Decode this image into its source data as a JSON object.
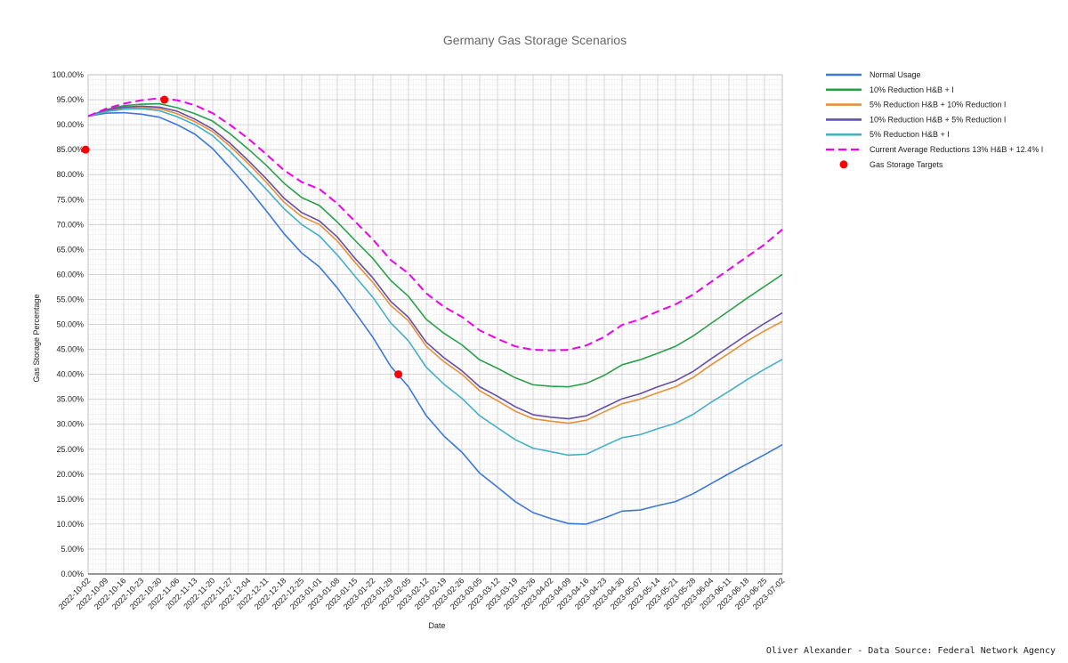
{
  "chart_data": {
    "type": "line",
    "title": "Germany Gas Storage Scenarios",
    "xlabel": "Date",
    "ylabel": "Gas Storage Percentage",
    "ylim": [
      0,
      100
    ],
    "ytick_step": 5,
    "ytick_suffix": "%",
    "grid": true,
    "legend_position": "top-right",
    "source": "Oliver Alexander - Data Source: Federal Network Agency",
    "x": [
      "2022-10-02",
      "2022-10-09",
      "2022-10-16",
      "2022-10-23",
      "2022-10-30",
      "2022-11-06",
      "2022-11-13",
      "2022-11-20",
      "2022-11-27",
      "2022-12-04",
      "2022-12-11",
      "2022-12-18",
      "2022-12-25",
      "2023-01-01",
      "2023-01-08",
      "2023-01-15",
      "2023-01-22",
      "2023-01-29",
      "2023-02-05",
      "2023-02-12",
      "2023-02-19",
      "2023-02-26",
      "2023-03-05",
      "2023-03-12",
      "2023-03-19",
      "2023-03-26",
      "2023-04-02",
      "2023-04-09",
      "2023-04-16",
      "2023-04-23",
      "2023-04-30",
      "2023-05-07",
      "2023-05-14",
      "2023-05-21",
      "2023-05-28",
      "2023-06-04",
      "2023-06-11",
      "2023-06-18",
      "2023-06-25",
      "2023-07-02"
    ],
    "series": [
      {
        "name": "Normal Usage",
        "color": "#3c78d8",
        "dash": false,
        "values": [
          91.7,
          92.3,
          92.4,
          92.1,
          91.5,
          90.0,
          88.1,
          85.2,
          81.3,
          77.2,
          72.8,
          68.2,
          64.3,
          61.5,
          57.3,
          52.4,
          47.4,
          41.6,
          37.5,
          31.7,
          27.6,
          24.4,
          20.2,
          17.4,
          14.5,
          12.3,
          11.1,
          10.1,
          10.0,
          11.2,
          12.6,
          12.8,
          13.7,
          14.5,
          16.1,
          18.1,
          20.1,
          22.0,
          23.9,
          25.9
        ]
      },
      {
        "name": "10% Reduction H&B + I",
        "color": "#2ba04a",
        "dash": false,
        "values": [
          91.7,
          93.0,
          93.8,
          94.1,
          94.2,
          93.4,
          92.2,
          90.7,
          88.1,
          85.1,
          81.9,
          78.3,
          75.4,
          73.8,
          70.5,
          66.8,
          63.2,
          58.8,
          55.6,
          51.0,
          48.2,
          45.9,
          42.9,
          41.2,
          39.3,
          37.9,
          37.6,
          37.5,
          38.2,
          39.8,
          41.9,
          42.9,
          44.2,
          45.6,
          47.7,
          50.2,
          52.7,
          55.2,
          57.6,
          60.0
        ]
      },
      {
        "name": "5% Reduction H&B + 10% Reduction I",
        "color": "#e69138",
        "dash": false,
        "values": [
          91.7,
          92.8,
          93.3,
          93.4,
          93.2,
          92.2,
          90.6,
          88.6,
          85.6,
          82.2,
          78.5,
          74.5,
          71.6,
          70.0,
          66.7,
          62.4,
          58.4,
          53.8,
          50.7,
          45.6,
          42.5,
          40.0,
          36.7,
          34.7,
          32.6,
          31.1,
          30.6,
          30.2,
          30.8,
          32.5,
          34.1,
          35.0,
          36.3,
          37.5,
          39.4,
          41.9,
          44.2,
          46.6,
          48.7,
          50.6
        ]
      },
      {
        "name": "10% Reduction H&B + 5% Reduction I",
        "color": "#674ea7",
        "dash": false,
        "values": [
          91.7,
          92.9,
          93.5,
          93.7,
          93.5,
          92.7,
          91.1,
          89.1,
          86.2,
          82.8,
          79.2,
          75.3,
          72.4,
          70.7,
          67.5,
          63.2,
          59.3,
          54.6,
          51.4,
          46.4,
          43.3,
          40.7,
          37.5,
          35.6,
          33.5,
          31.9,
          31.4,
          31.1,
          31.7,
          33.4,
          35.1,
          36.1,
          37.5,
          38.7,
          40.6,
          43.1,
          45.5,
          47.9,
          50.2,
          52.3
        ]
      },
      {
        "name": "5% Reduction H&B + I",
        "color": "#45b0c6",
        "dash": false,
        "values": [
          91.7,
          92.6,
          93.1,
          93.2,
          92.8,
          91.6,
          90.0,
          87.8,
          84.5,
          80.8,
          77.1,
          73.2,
          70.0,
          67.7,
          63.9,
          59.6,
          55.4,
          50.3,
          46.7,
          41.4,
          38.0,
          35.2,
          31.7,
          29.3,
          26.9,
          25.2,
          24.5,
          23.8,
          24.0,
          25.7,
          27.3,
          27.9,
          29.1,
          30.2,
          32.0,
          34.4,
          36.6,
          38.9,
          41.0,
          43.0
        ]
      },
      {
        "name": "Current Average Reductions 13% H&B + 12.4% I",
        "color": "#ee00ee",
        "dash": true,
        "values": [
          91.7,
          93.2,
          94.2,
          94.9,
          95.3,
          94.9,
          93.9,
          92.3,
          89.9,
          87.2,
          84.1,
          80.9,
          78.5,
          77.1,
          74.2,
          70.6,
          67.0,
          62.9,
          60.2,
          56.2,
          53.5,
          51.5,
          48.8,
          47.1,
          45.6,
          44.9,
          44.8,
          44.9,
          45.8,
          47.5,
          49.9,
          51.0,
          52.6,
          54.0,
          56.0,
          58.5,
          61.0,
          63.5,
          66.0,
          69.0
        ]
      }
    ],
    "targets": {
      "name": "Gas Storage Targets",
      "color": "#ff0000",
      "points": [
        {
          "x": "2022-10-01",
          "y": 85
        },
        {
          "x": "2022-11-01",
          "y": 95
        },
        {
          "x": "2023-02-01",
          "y": 40
        }
      ]
    }
  }
}
